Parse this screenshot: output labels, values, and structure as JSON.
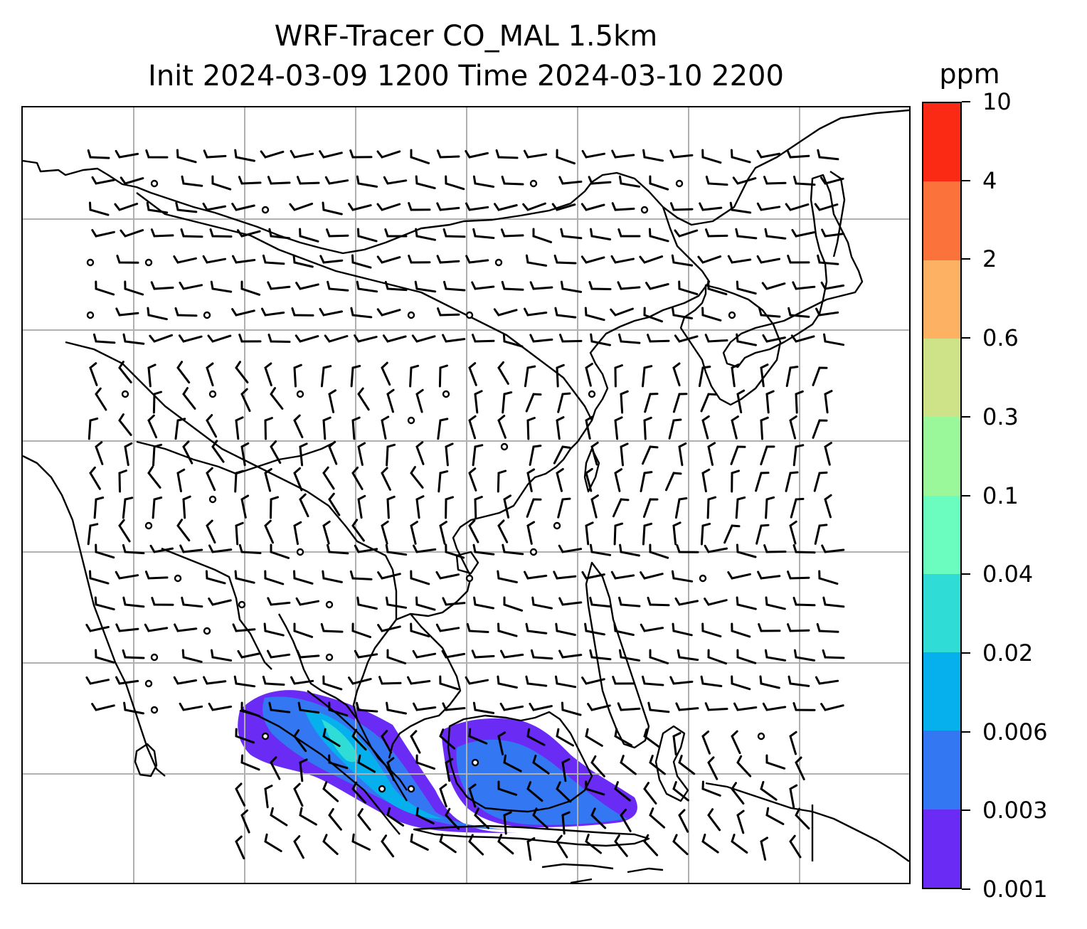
{
  "title": {
    "line1": "WRF-Tracer CO_MAL 1.5km",
    "line2": "Init 2024-03-09 1200 Time 2024-03-10 2200"
  },
  "colorbar": {
    "unit": "ppm",
    "tick_labels": [
      "0.001",
      "0.003",
      "0.006",
      "0.02",
      "0.04",
      "0.1",
      "0.3",
      "0.6",
      "2",
      "4",
      "10"
    ],
    "colors": [
      "#6a2bf5",
      "#3377f2",
      "#05b0ec",
      "#2fdcd6",
      "#6bfcc0",
      "#9af89a",
      "#cee387",
      "#fcb262",
      "#fb733a",
      "#fb2a14"
    ]
  },
  "map": {
    "gridlines": true,
    "coastline_color": "#000000",
    "wind_barbs": true,
    "calm_markers": true
  }
}
